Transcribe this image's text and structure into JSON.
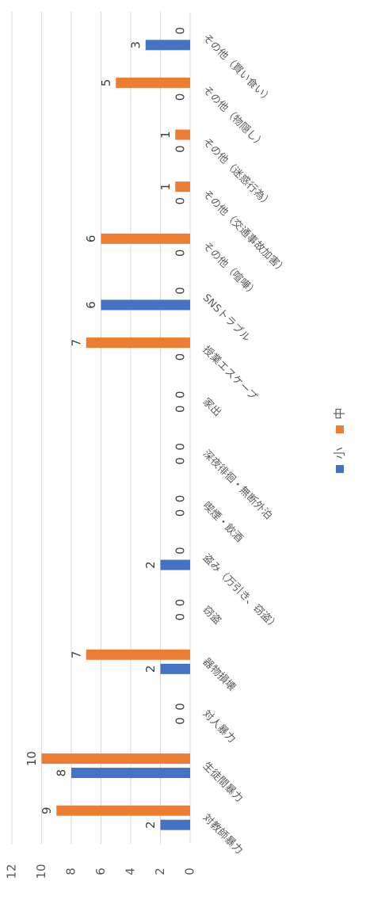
{
  "chart_data": {
    "type": "bar",
    "categories": [
      "対教師暴力",
      "生徒間暴力",
      "対人暴力",
      "器物損壊",
      "窃盗",
      "盗み（万引き、窃盗）",
      "喫煙・飲酒",
      "深夜徘徊・無断外泊",
      "家出",
      "授業エスケープ",
      "SNSトラブル",
      "その他（喧嘩）",
      "その他（交通事故加害）",
      "その他（迷惑行為）",
      "その他（物隠し）",
      "その他（買い食い）"
    ],
    "series": [
      {
        "name": "小",
        "color": "#4472c4",
        "values": [
          2,
          8,
          0,
          2,
          0,
          2,
          0,
          0,
          0,
          0,
          6,
          0,
          0,
          0,
          0,
          3
        ]
      },
      {
        "name": "中",
        "color": "#ed7d31",
        "values": [
          9,
          10,
          0,
          7,
          0,
          0,
          0,
          0,
          0,
          7,
          0,
          6,
          1,
          1,
          5,
          0
        ]
      }
    ],
    "ylim": [
      0,
      12
    ],
    "yticks": [
      0,
      2,
      4,
      6,
      8,
      10,
      12
    ],
    "grid": true,
    "legend": "bottom"
  }
}
